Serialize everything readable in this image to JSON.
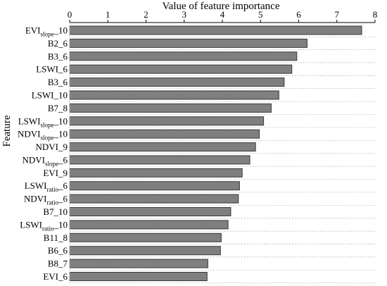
{
  "chart_data": {
    "type": "bar",
    "orientation": "horizontal",
    "title": "Value of feature importance",
    "xlabel": "Value of feature importance",
    "ylabel": "Feature",
    "xlim": [
      0,
      8
    ],
    "xticks": [
      "0",
      "1",
      "2",
      "3",
      "4",
      "5",
      "6",
      "7",
      "8"
    ],
    "x_axis_position": "top",
    "grid": "horizontal dotted",
    "bar_color": "#7f7f7f",
    "categories": [
      {
        "base": "EVI",
        "sub": "slope",
        "suffix": "_10"
      },
      {
        "base": "B2_6",
        "sub": "",
        "suffix": ""
      },
      {
        "base": "B3_6",
        "sub": "",
        "suffix": ""
      },
      {
        "base": "LSWI_6",
        "sub": "",
        "suffix": ""
      },
      {
        "base": "B3_6",
        "sub": "",
        "suffix": ""
      },
      {
        "base": "LSWI_10",
        "sub": "",
        "suffix": ""
      },
      {
        "base": "B7_8",
        "sub": "",
        "suffix": ""
      },
      {
        "base": "LSWI",
        "sub": "slope",
        "suffix": "_10"
      },
      {
        "base": "NDVI",
        "sub": "slope",
        "suffix": "_10"
      },
      {
        "base": "NDVI_9",
        "sub": "",
        "suffix": ""
      },
      {
        "base": "NDVI",
        "sub": "slope",
        "suffix": "_6"
      },
      {
        "base": "EVI_9",
        "sub": "",
        "suffix": ""
      },
      {
        "base": "LSWI",
        "sub": "ratio",
        "suffix": "_6"
      },
      {
        "base": "NDVI",
        "sub": "ratio",
        "suffix": "_6"
      },
      {
        "base": "B7_10",
        "sub": "",
        "suffix": ""
      },
      {
        "base": "LSWI",
        "sub": "ratio",
        "suffix": "_10"
      },
      {
        "base": "B11_8",
        "sub": "",
        "suffix": ""
      },
      {
        "base": "B6_6",
        "sub": "",
        "suffix": ""
      },
      {
        "base": "B8_7",
        "sub": "",
        "suffix": ""
      },
      {
        "base": "EVI_6",
        "sub": "",
        "suffix": ""
      }
    ],
    "values": [
      7.65,
      6.22,
      5.95,
      5.82,
      5.62,
      5.48,
      5.28,
      5.08,
      4.97,
      4.87,
      4.72,
      4.52,
      4.45,
      4.42,
      4.22,
      4.15,
      3.97,
      3.95,
      3.62,
      3.6
    ]
  }
}
